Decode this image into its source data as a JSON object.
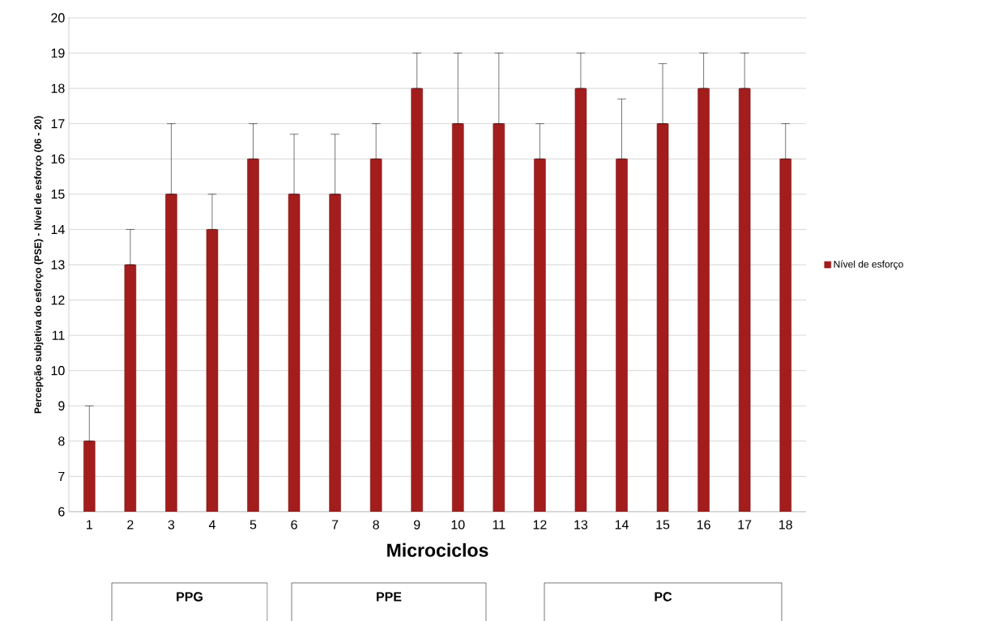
{
  "chart_data": {
    "type": "bar",
    "xlabel": "Microciclos",
    "ylabel": "Percepção subjetiva do esforço (PSE) - Nível de esforço (06 - 20)",
    "categories": [
      "1",
      "2",
      "3",
      "4",
      "5",
      "6",
      "7",
      "8",
      "9",
      "10",
      "11",
      "12",
      "13",
      "14",
      "15",
      "16",
      "17",
      "18"
    ],
    "series": [
      {
        "name": "Nível de esforço",
        "color": "#a31d1d",
        "values": [
          8,
          13,
          15,
          14,
          16,
          15,
          15,
          16,
          18,
          17,
          17,
          16,
          18,
          16,
          17,
          18,
          18,
          16
        ],
        "errors": [
          [
            8,
            9
          ],
          [
            13,
            14
          ],
          [
            15,
            17
          ],
          [
            14,
            15
          ],
          [
            16,
            17
          ],
          [
            15,
            16.7
          ],
          [
            15,
            16.7
          ],
          [
            16,
            17
          ],
          [
            18,
            19
          ],
          [
            17,
            19
          ],
          [
            17,
            19
          ],
          [
            16,
            17
          ],
          [
            18,
            19
          ],
          [
            16,
            17.7
          ],
          [
            17,
            18.7
          ],
          [
            18,
            19
          ],
          [
            18,
            19
          ],
          [
            16,
            17
          ]
        ]
      }
    ],
    "ylim": [
      6,
      20
    ],
    "yticks": [
      6,
      7,
      8,
      9,
      10,
      11,
      12,
      13,
      14,
      15,
      16,
      17,
      18,
      19,
      20
    ],
    "grid": "y",
    "legend": "right",
    "annotations": [
      "PPG",
      "PPE",
      "PC"
    ]
  }
}
